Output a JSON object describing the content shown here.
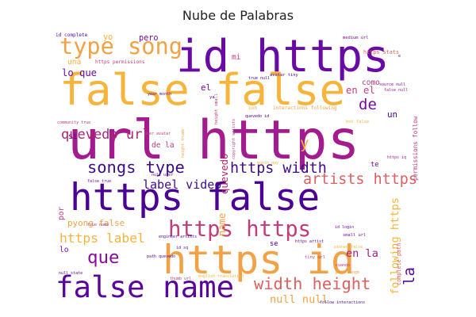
{
  "chart_data": {
    "type": "wordcloud",
    "title": "Nube de Palabras",
    "colormap": [
      "#4b0096",
      "#7a08a6",
      "#a21b8f",
      "#c23c79",
      "#dc6060",
      "#f28a43",
      "#f8b43a",
      "#efd85c"
    ],
    "words": [
      {
        "text": "url https",
        "weight": 1.0,
        "color": "#a21b8f"
      },
      {
        "text": "id https",
        "weight": 0.82,
        "color": "#6a0aa4"
      },
      {
        "text": "false false",
        "weight": 0.8,
        "color": "#f8b43a"
      },
      {
        "text": "https false",
        "weight": 0.7,
        "color": "#4b0096"
      },
      {
        "text": "https id",
        "weight": 0.74,
        "color": "#f2a244"
      },
      {
        "text": "false name",
        "weight": 0.55,
        "color": "#5a04a0"
      },
      {
        "text": "type song",
        "weight": 0.42,
        "color": "#f2a244"
      },
      {
        "text": "songs type",
        "weight": 0.3,
        "color": "#3e0c8a"
      },
      {
        "text": "https width",
        "weight": 0.27,
        "color": "#3e0c8a"
      },
      {
        "text": "https https",
        "weight": 0.4,
        "color": "#c23c79"
      },
      {
        "text": "artists https",
        "weight": 0.27,
        "color": "#dc6060"
      },
      {
        "text": "width height",
        "weight": 0.3,
        "color": "#dc6060"
      },
      {
        "text": "que",
        "weight": 0.33,
        "color": "#8a0da0"
      },
      {
        "text": "quevedo url",
        "weight": 0.25,
        "color": "#b0246f"
      },
      {
        "text": "https label",
        "weight": 0.24,
        "color": "#f8b43a"
      },
      {
        "text": "label video",
        "weight": 0.22,
        "color": "#3e0c8a"
      },
      {
        "text": "null null",
        "weight": 0.2,
        "color": "#f2a244"
      },
      {
        "text": "la",
        "weight": 0.28,
        "color": "#5a04a0"
      },
      {
        "text": "de",
        "weight": 0.28,
        "color": "#7a08a6"
      },
      {
        "text": "y",
        "weight": 0.28,
        "color": "#f8b43a"
      },
      {
        "text": "following https",
        "weight": 0.2,
        "color": "#f8b43a"
      },
      {
        "text": "en la",
        "weight": 0.2,
        "color": "#a21b8f"
      },
      {
        "text": "en el",
        "weight": 0.18,
        "color": "#c23c79"
      },
      {
        "text": "lo que",
        "weight": 0.18,
        "color": "#6a0aa4"
      },
      {
        "text": "pyong false",
        "weight": 0.16,
        "color": "#f2a244"
      },
      {
        "text": "quevedo",
        "weight": 0.18,
        "color": "#b0246f"
      },
      {
        "text": "name",
        "weight": 0.18,
        "color": "#f2a244"
      },
      {
        "text": "pero",
        "weight": 0.15,
        "color": "#7a08a6"
      },
      {
        "text": "mi",
        "weight": 0.14,
        "color": "#c23c79"
      },
      {
        "text": "el",
        "weight": 0.16,
        "color": "#7a08a6"
      },
      {
        "text": "yo",
        "weight": 0.15,
        "color": "#f8b43a"
      },
      {
        "text": "una",
        "weight": 0.14,
        "color": "#f8b43a"
      },
      {
        "text": "como",
        "weight": 0.14,
        "color": "#c23c79"
      },
      {
        "text": "un",
        "weight": 0.16,
        "color": "#4b0096"
      },
      {
        "text": "si",
        "weight": 0.14,
        "color": "#4b0096"
      },
      {
        "text": "lo",
        "weight": 0.14,
        "color": "#7a08a6"
      },
      {
        "text": "se",
        "weight": 0.13,
        "color": "#4b0096"
      },
      {
        "text": "por",
        "weight": 0.14,
        "color": "#c23c79"
      },
      {
        "text": "te",
        "weight": 0.13,
        "color": "#7a08a6"
      },
      {
        "text": "de la",
        "weight": 0.14,
        "color": "#c23c79"
      },
      {
        "text": "https stats",
        "weight": 0.1,
        "color": "#dc6060"
      },
      {
        "text": "id complete",
        "weight": 0.09,
        "color": "#5a04a0"
      },
      {
        "text": "https permissions",
        "weight": 0.09,
        "color": "#c23c79"
      },
      {
        "text": "permissions follow",
        "weight": 0.11,
        "color": "#c23c79"
      },
      {
        "text": "complete path",
        "weight": 0.1,
        "color": "#dc6060"
      },
      {
        "text": "medium url",
        "weight": 0.08,
        "color": "#7a08a6"
      },
      {
        "text": "small url",
        "weight": 0.08,
        "color": "#7a08a6"
      },
      {
        "text": "tiny url",
        "weight": 0.08,
        "color": "#c23c79"
      },
      {
        "text": "avatar tiny",
        "weight": 0.08,
        "color": "#4b0096"
      },
      {
        "text": "interactions following",
        "weight": 0.09,
        "color": "#f2a244"
      },
      {
        "text": "hot false",
        "weight": 0.08,
        "color": "#f8b43a"
      },
      {
        "text": "height small",
        "weight": 0.08,
        "color": "#c23c79"
      },
      {
        "text": "height thumb",
        "weight": 0.07,
        "color": "#f2a244"
      },
      {
        "text": "copyright artists",
        "weight": 0.07,
        "color": "#c23c79"
      },
      {
        "text": "https artist",
        "weight": 0.07,
        "color": "#5a04a0"
      },
      {
        "text": "id sq",
        "weight": 0.07,
        "color": "#5a04a0"
      },
      {
        "text": "follow interactions",
        "weight": 0.07,
        "color": "#5a04a0"
      },
      {
        "text": "engineer artists",
        "weight": 0.06,
        "color": "#5a04a0"
      },
      {
        "text": "thumb url",
        "weight": 0.07,
        "color": "#c23c79"
      },
      {
        "text": "null state",
        "weight": 0.06,
        "color": "#5a04a0"
      },
      {
        "text": "path quevedo",
        "weight": 0.05,
        "color": "#5a04a0"
      },
      {
        "text": "id login",
        "weight": 0.06,
        "color": "#7a08a6"
      },
      {
        "text": "pinned false",
        "weight": 0.06,
        "color": "#f8b43a"
      },
      {
        "text": "https iq",
        "weight": 0.07,
        "color": "#a21b8f"
      },
      {
        "text": "quevedo id",
        "weight": 0.06,
        "color": "#4b0096"
      },
      {
        "text": "false null",
        "weight": 0.06,
        "color": "#a21b8f"
      },
      {
        "text": "true null",
        "weight": 0.05,
        "color": "#4b0096"
      },
      {
        "text": "year month",
        "weight": 0.05,
        "color": "#5a04a0"
      },
      {
        "text": "false true",
        "weight": 0.05,
        "color": "#7a08a6"
      },
      {
        "text": "true name",
        "weight": 0.05,
        "color": "#c23c79"
      },
      {
        "text": "cuando",
        "weight": 0.06,
        "color": "#c23c79"
      },
      {
        "text": "path range",
        "weight": 0.05,
        "color": "#f2a244"
      },
      {
        "text": "source null",
        "weight": 0.05,
        "color": "#7a08a6"
      },
      {
        "text": "community true",
        "weight": 0.05,
        "color": "#c23c79"
      },
      {
        "text": "null user",
        "weight": 0.05,
        "color": "#7a08a6"
      },
      {
        "text": "user avatar",
        "weight": 0.05,
        "color": "#c23c79"
      },
      {
        "text": "month day",
        "weight": 0.05,
        "color": "#f8b43a"
      },
      {
        "text": "english translation",
        "weight": 0.05,
        "color": "#f8b43a"
      },
      {
        "text": "ya",
        "weight": 0.08,
        "color": "#5a04a0"
      },
      {
        "text": "con",
        "weight": 0.09,
        "color": "#f2a244"
      },
      {
        "text": "e",
        "weight": 0.06,
        "color": "#7a08a6"
      }
    ]
  }
}
